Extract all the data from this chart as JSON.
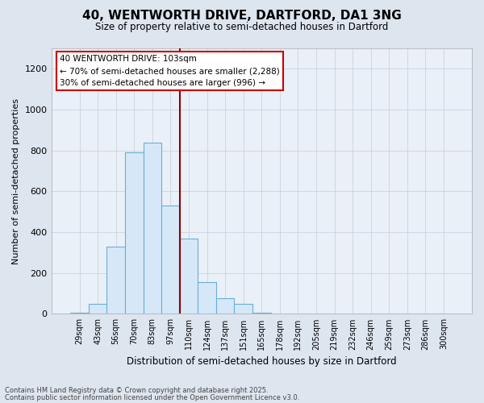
{
  "title1": "40, WENTWORTH DRIVE, DARTFORD, DA1 3NG",
  "title2": "Size of property relative to semi-detached houses in Dartford",
  "xlabel": "Distribution of semi-detached houses by size in Dartford",
  "ylabel": "Number of semi-detached properties",
  "bins": [
    "29sqm",
    "43sqm",
    "56sqm",
    "70sqm",
    "83sqm",
    "97sqm",
    "110sqm",
    "124sqm",
    "137sqm",
    "151sqm",
    "165sqm",
    "178sqm",
    "192sqm",
    "205sqm",
    "219sqm",
    "232sqm",
    "246sqm",
    "259sqm",
    "273sqm",
    "286sqm",
    "300sqm"
  ],
  "values": [
    5,
    50,
    330,
    790,
    840,
    530,
    370,
    155,
    75,
    50,
    5,
    0,
    0,
    0,
    0,
    0,
    0,
    0,
    0,
    0,
    0
  ],
  "bar_color": "#d6e8f7",
  "bar_edge_color": "#6aaed6",
  "vline_color": "#8b0000",
  "vline_pos": 5.5,
  "annotation_title": "40 WENTWORTH DRIVE: 103sqm",
  "annotation_line1": "← 70% of semi-detached houses are smaller (2,288)",
  "annotation_line2": "30% of semi-detached houses are larger (996) →",
  "annotation_box_edge": "#cc0000",
  "footer1": "Contains HM Land Registry data © Crown copyright and database right 2025.",
  "footer2": "Contains public sector information licensed under the Open Government Licence v3.0.",
  "ylim": [
    0,
    1300
  ],
  "yticks": [
    0,
    200,
    400,
    600,
    800,
    1000,
    1200
  ],
  "bg_color": "#dde5ef",
  "plot_bg_color": "#eaf0f7",
  "grid_color": "#c5cdd8"
}
